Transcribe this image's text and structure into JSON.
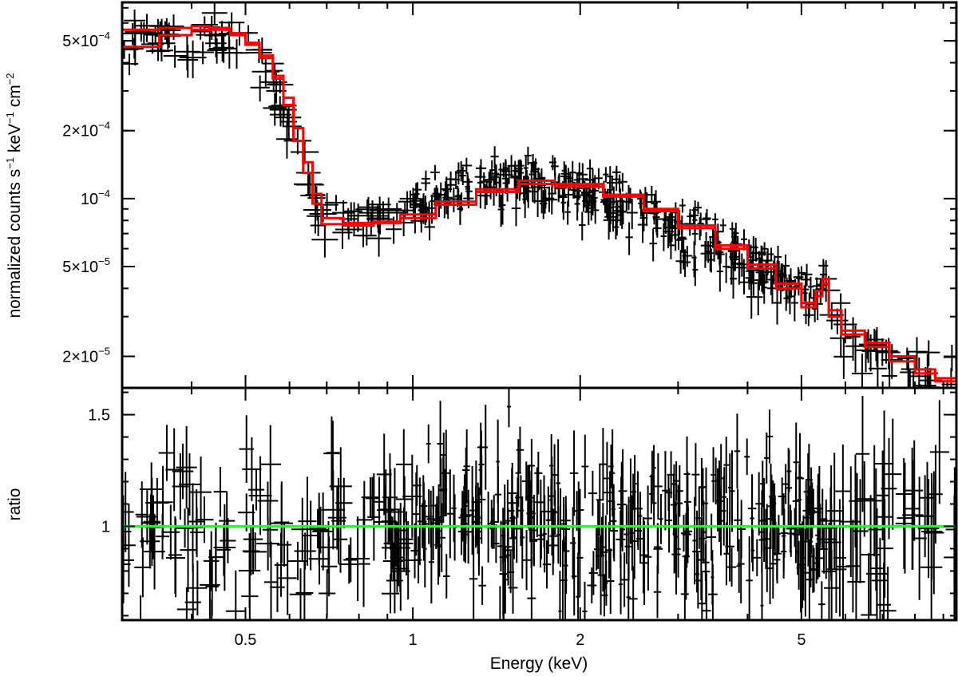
{
  "chart_data": [
    {
      "panel": "spectrum",
      "type": "scatter",
      "x_scale": "log",
      "y_scale": "log",
      "xlim": [
        0.3,
        9.5
      ],
      "ylim": [
        1.45e-05,
        0.00074
      ],
      "ylabel": {
        "text": "normalized counts s",
        "sup1": "−1",
        "mid": " keV",
        "sup2": "−1",
        "mid2": " cm",
        "sup3": "−2"
      },
      "y_ticks": [
        {
          "value": 2e-05,
          "mantissa": "2×10",
          "exp": "−5"
        },
        {
          "value": 5e-05,
          "mantissa": "5×10",
          "exp": "−5"
        },
        {
          "value": 0.0001,
          "mantissa": "10",
          "exp": "−4"
        },
        {
          "value": 0.0002,
          "mantissa": "2×10",
          "exp": "−4"
        },
        {
          "value": 0.0005,
          "mantissa": "5×10",
          "exp": "−4"
        }
      ],
      "data_color": "#000000",
      "model_color": "#ff0000",
      "data_shape": [
        [
          0.3,
          0.0005
        ],
        [
          0.35,
          0.00053
        ],
        [
          0.4,
          0.00055
        ],
        [
          0.45,
          0.00053
        ],
        [
          0.5,
          0.00048
        ],
        [
          0.53,
          0.00042
        ],
        [
          0.55,
          0.00036
        ],
        [
          0.57,
          0.0003
        ],
        [
          0.59,
          0.00026
        ],
        [
          0.61,
          0.00022
        ],
        [
          0.63,
          0.00016
        ],
        [
          0.65,
          0.00012
        ],
        [
          0.68,
          8.6e-05
        ],
        [
          0.72,
          8e-05
        ],
        [
          0.8,
          8e-05
        ],
        [
          0.9,
          8.3e-05
        ],
        [
          1.0,
          9.2e-05
        ],
        [
          1.2,
          0.000107
        ],
        [
          1.5,
          0.000118
        ],
        [
          1.8,
          0.000114
        ],
        [
          2.0,
          0.00011
        ],
        [
          2.5,
          9.3e-05
        ],
        [
          3.0,
          7.7e-05
        ],
        [
          3.5,
          6.4e-05
        ],
        [
          4.0,
          5.4e-05
        ],
        [
          4.5,
          4.6e-05
        ],
        [
          5.0,
          3.9e-05
        ],
        [
          5.3,
          3.7e-05
        ],
        [
          5.5,
          4.3e-05
        ],
        [
          5.7,
          3e-05
        ],
        [
          6.0,
          2.5e-05
        ],
        [
          7.0,
          2e-05
        ],
        [
          8.0,
          1.7e-05
        ],
        [
          9.5,
          1.6e-05
        ]
      ],
      "model_a": [
        [
          0.3,
          0.00047
        ],
        [
          0.35,
          0.00053
        ],
        [
          0.4,
          0.00056
        ],
        [
          0.43,
          0.00057
        ],
        [
          0.47,
          0.00053
        ],
        [
          0.5,
          0.00048
        ],
        [
          0.53,
          0.00042
        ],
        [
          0.56,
          0.00035
        ],
        [
          0.585,
          0.00028
        ],
        [
          0.61,
          0.000205
        ],
        [
          0.635,
          0.000145
        ],
        [
          0.66,
          0.000105
        ],
        [
          0.685,
          8.2e-05
        ],
        [
          0.75,
          7.8e-05
        ],
        [
          0.85,
          7.9e-05
        ],
        [
          0.95,
          8.5e-05
        ],
        [
          1.1,
          9.7e-05
        ],
        [
          1.3,
          0.00011
        ],
        [
          1.55,
          0.00012
        ],
        [
          1.8,
          0.000116
        ],
        [
          2.2,
          0.000104
        ],
        [
          2.6,
          9e-05
        ],
        [
          3.0,
          7.6e-05
        ],
        [
          3.5,
          6.2e-05
        ],
        [
          4.0,
          5.1e-05
        ],
        [
          4.5,
          4.2e-05
        ],
        [
          5.0,
          3.45e-05
        ],
        [
          5.3,
          3.9e-05
        ],
        [
          5.45,
          4.4e-05
        ],
        [
          5.6,
          3.2e-05
        ],
        [
          5.9,
          2.6e-05
        ],
        [
          6.5,
          2.3e-05
        ],
        [
          7.2,
          2e-05
        ],
        [
          8.0,
          1.75e-05
        ],
        [
          8.7,
          1.6e-05
        ],
        [
          9.5,
          1.55e-05
        ]
      ],
      "model_b": [
        [
          0.3,
          0.00056
        ],
        [
          0.35,
          0.00057
        ],
        [
          0.4,
          0.00058
        ],
        [
          0.43,
          0.00056
        ],
        [
          0.47,
          0.00054
        ],
        [
          0.5,
          0.00049
        ],
        [
          0.53,
          0.00043
        ],
        [
          0.56,
          0.00034
        ],
        [
          0.585,
          0.00026
        ],
        [
          0.61,
          0.00018
        ],
        [
          0.635,
          0.00013
        ],
        [
          0.66,
          9.5e-05
        ],
        [
          0.685,
          7.7e-05
        ],
        [
          0.75,
          7.6e-05
        ],
        [
          0.85,
          7.8e-05
        ],
        [
          0.95,
          8.2e-05
        ],
        [
          1.1,
          9.4e-05
        ],
        [
          1.3,
          0.000107
        ],
        [
          1.55,
          0.000116
        ],
        [
          1.8,
          0.000113
        ],
        [
          2.2,
          0.000102
        ],
        [
          2.6,
          8.8e-05
        ],
        [
          3.0,
          7.4e-05
        ],
        [
          3.5,
          6e-05
        ],
        [
          4.0,
          4.9e-05
        ],
        [
          4.5,
          4e-05
        ],
        [
          5.0,
          3.3e-05
        ],
        [
          5.3,
          3.7e-05
        ],
        [
          5.45,
          4.2e-05
        ],
        [
          5.6,
          3e-05
        ],
        [
          5.9,
          2.5e-05
        ],
        [
          6.5,
          2.2e-05
        ],
        [
          7.2,
          1.9e-05
        ],
        [
          8.0,
          1.68e-05
        ],
        [
          8.7,
          1.55e-05
        ],
        [
          9.5,
          1.5e-05
        ]
      ],
      "n_points": 520,
      "noise_frac": 0.13
    },
    {
      "panel": "ratio",
      "type": "scatter",
      "x_scale": "log",
      "y_scale": "linear",
      "xlim": [
        0.3,
        9.5
      ],
      "ylim": [
        0.58,
        1.62
      ],
      "ylabel": "ratio",
      "y_ticks": [
        {
          "value": 1,
          "label": "1"
        },
        {
          "value": 1.5,
          "label": "1.5"
        }
      ],
      "reference_line": 1,
      "reference_color": "#33ee33",
      "data_color": "#000000",
      "xlabel": "Energy (keV)",
      "x_ticks": [
        {
          "value": 0.5,
          "label": "0.5"
        },
        {
          "value": 1,
          "label": "1"
        },
        {
          "value": 2,
          "label": "2"
        },
        {
          "value": 5,
          "label": "5"
        }
      ],
      "n_points": 520,
      "scatter_sd": 0.17
    }
  ]
}
